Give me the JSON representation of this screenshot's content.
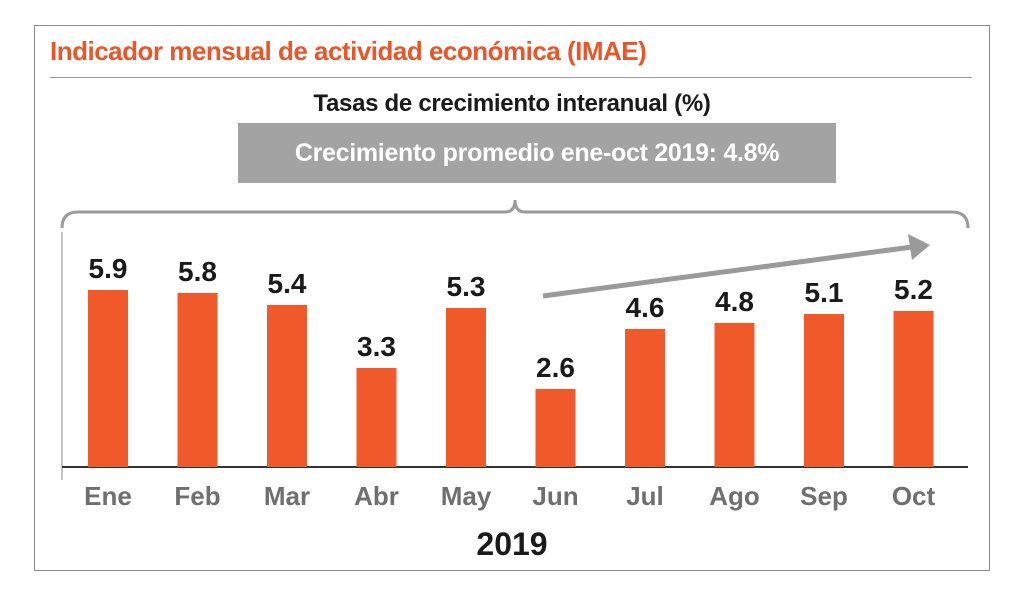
{
  "header": {
    "title": "Indicador mensual de actividad económica (IMAE)"
  },
  "colors": {
    "title": "#e8562a",
    "bar": "#f05a2b",
    "annotation_box": "#a3a3a3",
    "trend_arrow": "#9a9a9a",
    "tick_label": "#6f6f6f"
  },
  "chart_data": {
    "type": "bar",
    "title": "Tasas de crecimiento interanual (%)",
    "annotation": "Crecimiento promedio ene-oct 2019: 4.8%",
    "xlabel": "2019",
    "ylabel": "",
    "categories": [
      "Ene",
      "Feb",
      "Mar",
      "Abr",
      "May",
      "Jun",
      "Jul",
      "Ago",
      "Sep",
      "Oct"
    ],
    "values": [
      5.9,
      5.8,
      5.4,
      3.3,
      5.3,
      2.6,
      4.6,
      4.8,
      5.1,
      5.2
    ],
    "value_labels": [
      "5.9",
      "5.8",
      "5.4",
      "3.3",
      "5.3",
      "2.6",
      "4.6",
      "4.8",
      "5.1",
      "5.2"
    ],
    "ylim": [
      0,
      6.0
    ],
    "grid": false,
    "legend": "none",
    "trend_arrow": {
      "from_category": "Jun",
      "to_category": "Oct",
      "direction": "up"
    },
    "brace": {
      "spans": "Ene-Oct"
    }
  }
}
